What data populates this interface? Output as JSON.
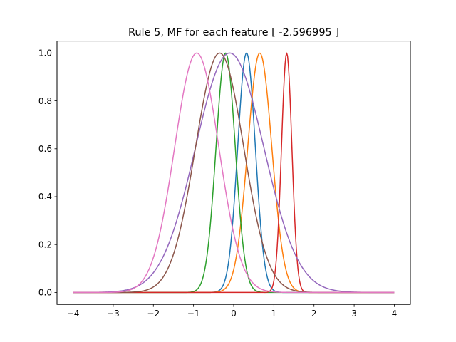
{
  "chart_data": {
    "type": "line",
    "title": "Rule 5, MF for each feature [ -2.596995 ]",
    "xlabel": "",
    "ylabel": "",
    "xlim": [
      -4.4,
      4.4
    ],
    "ylim": [
      -0.05,
      1.05
    ],
    "xticks": [
      -4,
      -3,
      -2,
      -1,
      0,
      1,
      2,
      3,
      4
    ],
    "xtick_labels": [
      "−4",
      "−3",
      "−2",
      "−1",
      "0",
      "1",
      "2",
      "3",
      "4"
    ],
    "yticks": [
      0.0,
      0.2,
      0.4,
      0.6,
      0.8,
      1.0
    ],
    "ytick_labels": [
      "0.0",
      "0.2",
      "0.4",
      "0.6",
      "0.8",
      "1.0"
    ],
    "grid": false,
    "legend": "none",
    "x_range": [
      -4,
      4
    ],
    "series": [
      {
        "curve": "gaussian",
        "center": 0.32,
        "sigma": 0.22,
        "color": "#1f77b4"
      },
      {
        "curve": "gaussian",
        "center": 0.65,
        "sigma": 0.3,
        "color": "#ff7f0e"
      },
      {
        "curve": "gaussian",
        "center": -0.2,
        "sigma": 0.24,
        "color": "#2ca02c"
      },
      {
        "curve": "gaussian",
        "center": 1.32,
        "sigma": 0.13,
        "color": "#d62728"
      },
      {
        "curve": "gaussian",
        "center": -0.1,
        "sigma": 0.85,
        "color": "#9467bd"
      },
      {
        "curve": "gaussian",
        "center": -0.35,
        "sigma": 0.6,
        "color": "#8c564b"
      },
      {
        "curve": "gaussian",
        "center": -0.92,
        "sigma": 0.55,
        "color": "#e377c2"
      }
    ]
  }
}
